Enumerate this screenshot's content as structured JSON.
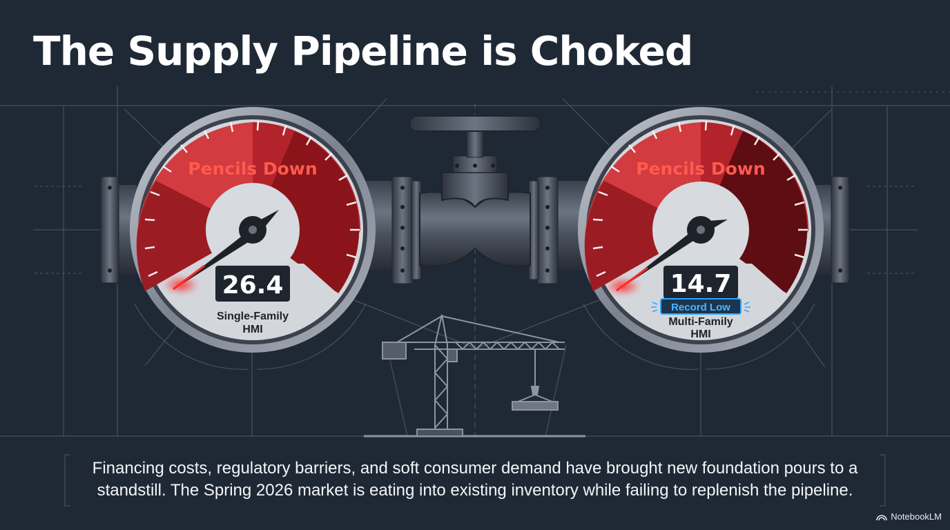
{
  "title": "The Supply Pipeline is Choked",
  "gauges": [
    {
      "banner": "Pencils Down",
      "value": "26.4",
      "badge": "",
      "label_line1": "Single-Family",
      "label_line2": "HMI"
    },
    {
      "banner": "Pencils Down",
      "value": "14.7",
      "badge": "Record Low",
      "label_line1": "Multi-Family",
      "label_line2": "HMI"
    }
  ],
  "caption": "Financing costs, regulatory barriers, and soft consumer demand have brought new foundation pours to a standstill. The Spring 2026 market is eating into existing inventory while failing to replenish the pipeline.",
  "brand": "NotebookLM",
  "colors": {
    "background": "#1f2936",
    "gauge_red": "#b2232c",
    "gauge_dark_red": "#5e0d12",
    "banner_text": "#ff5a4f",
    "badge_blue": "#2ea6ff",
    "blueprint_line": "#5d6878",
    "pipe_metal": "#4b5361"
  }
}
